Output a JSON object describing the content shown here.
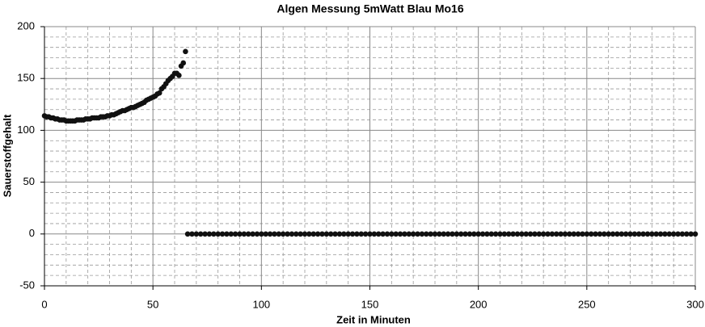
{
  "chart_data": {
    "type": "scatter",
    "title": "Algen Messung 5mWatt Blau Mo16",
    "x_label": "Zeit in Minuten",
    "y_label": "Sauerstoffgehalt",
    "xlim": [
      0,
      300
    ],
    "ylim": [
      -50,
      200
    ],
    "xticks": [
      0,
      50,
      100,
      150,
      200,
      250,
      300
    ],
    "yticks": [
      -50,
      0,
      50,
      100,
      150,
      200
    ],
    "minor_xticks": [
      10,
      20,
      30,
      40,
      60,
      70,
      80,
      90,
      110,
      120,
      130,
      140,
      160,
      170,
      180,
      190,
      210,
      220,
      230,
      240,
      260,
      270,
      280,
      290
    ],
    "minor_yticks": [
      -40,
      -30,
      -20,
      -10,
      10,
      20,
      30,
      40,
      60,
      70,
      80,
      90,
      110,
      120,
      130,
      140,
      160,
      170,
      180,
      190
    ],
    "grid": true,
    "color": "#111111",
    "x": [
      0,
      1,
      2,
      3,
      4,
      5,
      6,
      7,
      8,
      9,
      10,
      11,
      12,
      13,
      14,
      15,
      16,
      17,
      18,
      19,
      20,
      21,
      22,
      23,
      24,
      25,
      26,
      27,
      28,
      29,
      30,
      31,
      32,
      33,
      34,
      35,
      36,
      37,
      38,
      39,
      40,
      41,
      42,
      43,
      44,
      45,
      46,
      47,
      48,
      49,
      50,
      51,
      52,
      53,
      54,
      55,
      56,
      57,
      58,
      59,
      60,
      61,
      62,
      63,
      64,
      65,
      66,
      68,
      70,
      72,
      74,
      76,
      78,
      80,
      82,
      84,
      86,
      88,
      90,
      92,
      94,
      96,
      98,
      100,
      102,
      104,
      106,
      108,
      110,
      112,
      114,
      116,
      118,
      120,
      122,
      124,
      126,
      128,
      130,
      132,
      134,
      136,
      138,
      140,
      142,
      144,
      146,
      148,
      150,
      152,
      154,
      156,
      158,
      160,
      162,
      164,
      166,
      168,
      170,
      172,
      174,
      176,
      178,
      180,
      182,
      184,
      186,
      188,
      190,
      192,
      194,
      196,
      198,
      200,
      202,
      204,
      206,
      208,
      210,
      212,
      214,
      216,
      218,
      220,
      222,
      224,
      226,
      228,
      230,
      232,
      234,
      236,
      238,
      240,
      242,
      244,
      246,
      248,
      250,
      252,
      254,
      256,
      258,
      260,
      262,
      264,
      266,
      268,
      270,
      272,
      274,
      276,
      278,
      280,
      282,
      284,
      286,
      288,
      290,
      292,
      294,
      296,
      298,
      300
    ],
    "values": [
      114,
      113,
      113,
      112,
      112,
      111,
      111,
      110,
      110,
      110,
      109,
      109,
      109,
      109,
      109,
      110,
      110,
      110,
      110,
      111,
      111,
      111,
      112,
      112,
      112,
      112,
      113,
      113,
      113,
      114,
      114,
      115,
      115,
      116,
      117,
      118,
      119,
      119,
      120,
      121,
      122,
      122,
      123,
      124,
      125,
      126,
      127,
      129,
      130,
      131,
      132,
      133,
      135,
      136,
      140,
      142,
      145,
      148,
      150,
      152,
      155,
      155,
      153,
      162,
      165,
      176,
      0,
      0,
      0,
      0,
      0,
      0,
      0,
      0,
      0,
      0,
      0,
      0,
      0,
      0,
      0,
      0,
      0,
      0,
      0,
      0,
      0,
      0,
      0,
      0,
      0,
      0,
      0,
      0,
      0,
      0,
      0,
      0,
      0,
      0,
      0,
      0,
      0,
      0,
      0,
      0,
      0,
      0,
      0,
      0,
      0,
      0,
      0,
      0,
      0,
      0,
      0,
      0,
      0,
      0,
      0,
      0,
      0,
      0,
      0,
      0,
      0,
      0,
      0,
      0,
      0,
      0,
      0,
      0,
      0,
      0,
      0,
      0,
      0,
      0,
      0,
      0,
      0,
      0,
      0,
      0,
      0,
      0,
      0,
      0,
      0,
      0,
      0,
      0,
      0,
      0,
      0,
      0,
      0,
      0,
      0,
      0,
      0,
      0,
      0,
      0,
      0,
      0,
      0,
      0,
      0,
      0,
      0,
      0,
      0,
      0,
      0,
      0,
      0,
      0,
      0,
      0,
      0,
      0
    ]
  }
}
